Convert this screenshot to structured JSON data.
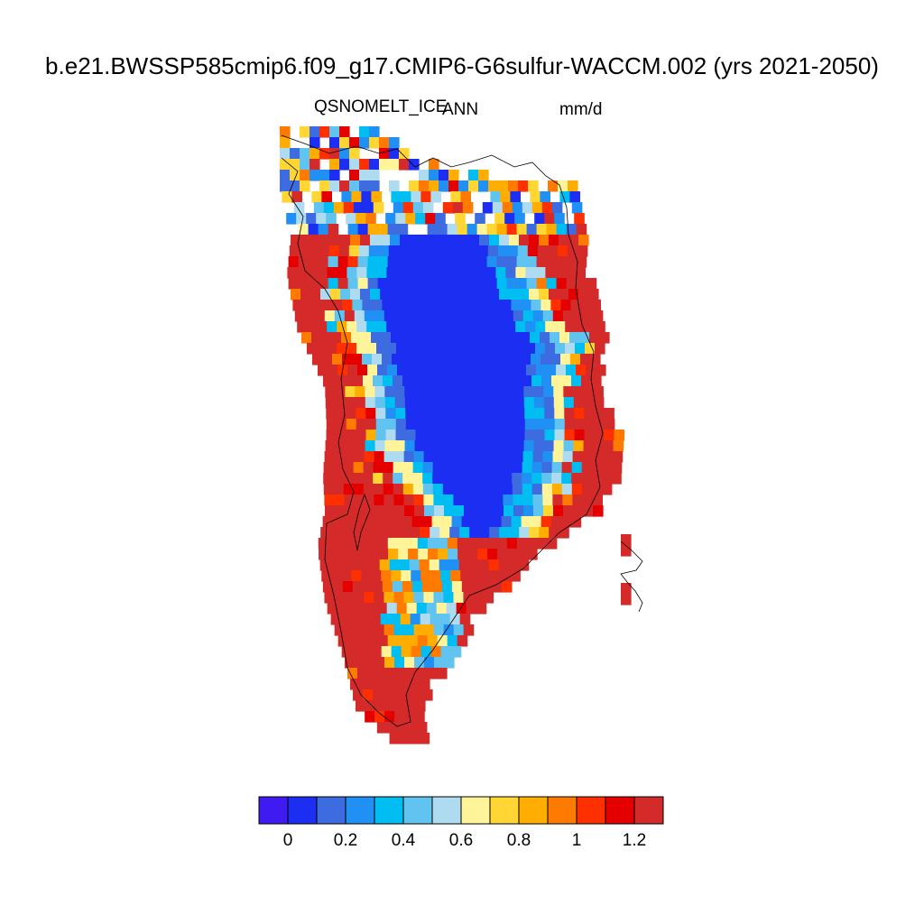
{
  "header": {
    "title": "b.e21.BWSSP585cmip6.f09_g17.CMIP6-G6sulfur-WACCM.002 (yrs 2021-2050)",
    "variable": "QSNOMELT_ICE",
    "season": "ANN",
    "units": "mm/d"
  },
  "map": {
    "region": "Greenland",
    "field": "annual mean snow melt over ice"
  },
  "colorbar": {
    "tick_labels": [
      "0",
      "0.2",
      "0.4",
      "0.6",
      "0.8",
      "1",
      "1.2"
    ],
    "colors": [
      "#3f1bf2",
      "#1b2ef2",
      "#3d6be0",
      "#2090f5",
      "#00bdf2",
      "#60c3f0",
      "#aedbf0",
      "#fff49a",
      "#ffd633",
      "#ffad00",
      "#ff7a00",
      "#ff3000",
      "#e50000",
      "#d42a2a"
    ]
  }
}
